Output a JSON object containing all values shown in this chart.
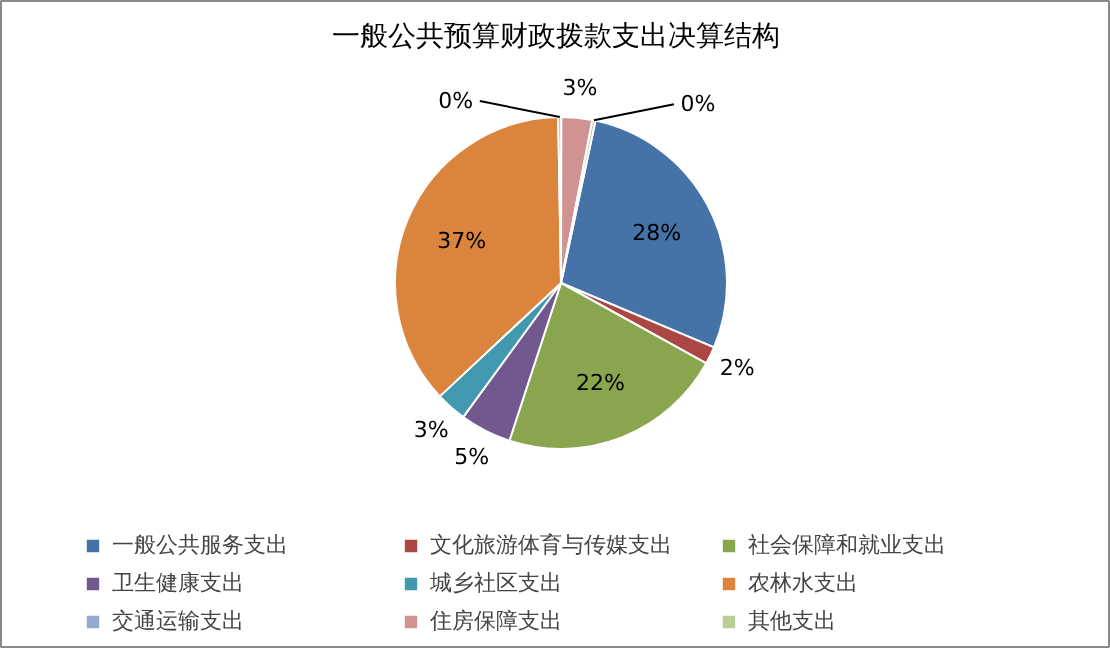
{
  "chart_data": {
    "type": "pie",
    "title": "一般公共预算财政拨款支出决算结构",
    "categories": [
      "一般公共服务支出",
      "文化旅游体育与传媒支出",
      "社会保障和就业支出",
      "卫生健康支出",
      "城乡社区支出",
      "农林水支出",
      "交通运输支出",
      "住房保障支出",
      "其他支出"
    ],
    "values": [
      28,
      1.7,
      22,
      5,
      3,
      36.7,
      0.3,
      3,
      0.3
    ],
    "colors": [
      "#4572a7",
      "#aa4643",
      "#89a54e",
      "#71588f",
      "#4198af",
      "#db843d",
      "#93a9cf",
      "#d19392",
      "#b9cd96"
    ],
    "value_labels": [
      "28%",
      "2%",
      "22%",
      "5%",
      "3%",
      "37%",
      "0%",
      "3%",
      "0%"
    ],
    "legend": "bottom"
  }
}
